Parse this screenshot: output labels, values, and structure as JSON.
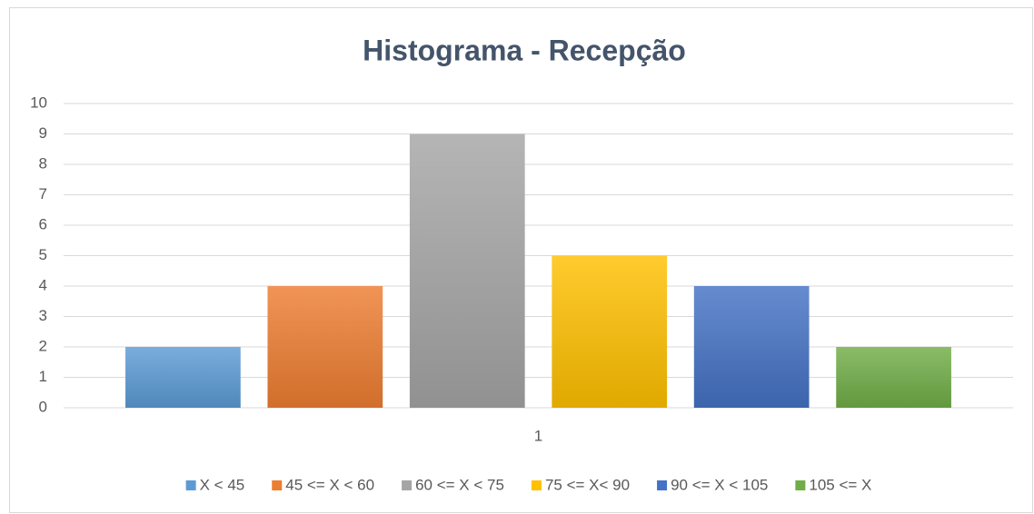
{
  "chart_data": {
    "type": "bar",
    "title": "Histograma - Recepção",
    "categories": [
      "1"
    ],
    "series": [
      {
        "name": "X < 45",
        "color": "#5b9bd5",
        "values": [
          2
        ]
      },
      {
        "name": "45 <= X < 60",
        "color": "#ed7d31",
        "values": [
          4
        ]
      },
      {
        "name": "60 <= X < 75",
        "color": "#a5a5a5",
        "values": [
          9
        ]
      },
      {
        "name": "75 <= X< 90",
        "color": "#ffc000",
        "values": [
          5
        ]
      },
      {
        "name": "90 <= X < 105",
        "color": "#4472c4",
        "values": [
          4
        ]
      },
      {
        "name": "105 <= X",
        "color": "#70ad47",
        "values": [
          2
        ]
      }
    ],
    "ylim": [
      0,
      10
    ],
    "yticks": [
      0,
      1,
      2,
      3,
      4,
      5,
      6,
      7,
      8,
      9,
      10
    ],
    "grid": true,
    "legend": "bottom"
  }
}
